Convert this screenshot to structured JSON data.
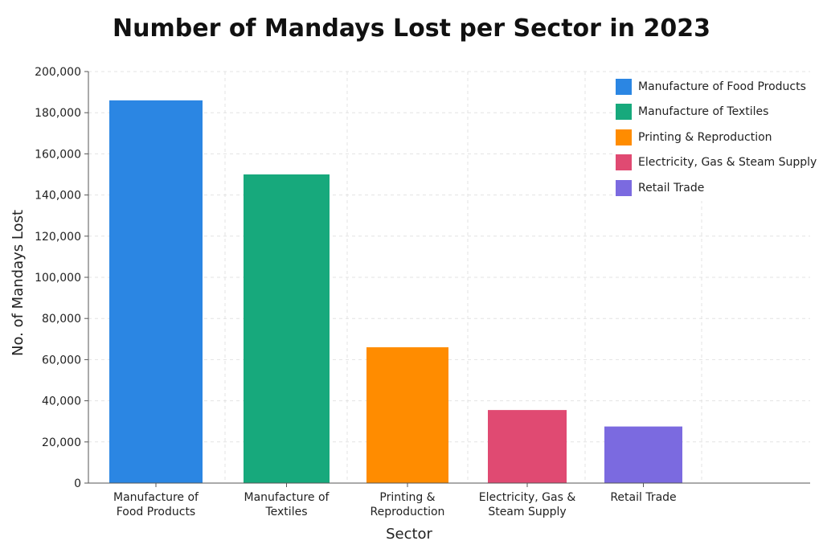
{
  "chart_data": {
    "type": "bar",
    "title": "Number of Mandays Lost per Sector in 2023",
    "xlabel": "Sector",
    "ylabel": "No. of Mandays Lost",
    "ylim": [
      0,
      200000
    ],
    "yticks": [
      "0",
      "20,000",
      "40,000",
      "60,000",
      "80,000",
      "100,000",
      "120,000",
      "140,000",
      "160,000",
      "180,000",
      "200,000"
    ],
    "grid": true,
    "legend_position": "top-right",
    "categories": [
      "Manufacture of Food Products",
      "Manufacture of Textiles",
      "Printing & Reproduction",
      "Electricity, Gas & Steam Supply",
      "Retail Trade"
    ],
    "category_labels": [
      [
        "Manufacture of",
        "Food Products"
      ],
      [
        "Manufacture of",
        "Textiles"
      ],
      [
        "Printing &",
        "Reproduction"
      ],
      [
        "Electricity, Gas &",
        "Steam Supply"
      ],
      [
        "Retail Trade"
      ]
    ],
    "values": [
      186000,
      150000,
      66000,
      35500,
      27500
    ],
    "colors": [
      "#2b86e3",
      "#17a97c",
      "#ff8c00",
      "#e04a72",
      "#7b6ae0"
    ]
  }
}
